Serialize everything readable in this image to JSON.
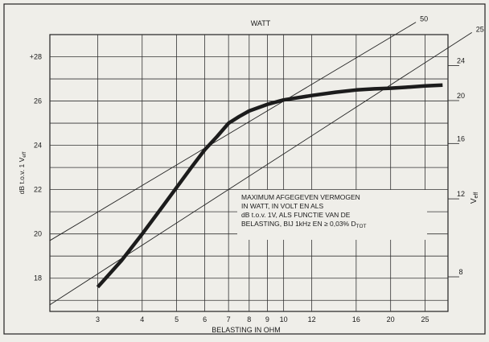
{
  "chart_data": {
    "type": "line",
    "title": "WATT",
    "xlabel": "BELASTING IN OHM",
    "ylabel_left": "dB t.o.v. 1 V",
    "ylabel_left_sub": "eff",
    "ylabel_right": "V",
    "ylabel_right_sub": "eff",
    "x_scale": "log",
    "xlim": [
      2.2,
      29
    ],
    "x_ticks": [
      3,
      4,
      5,
      6,
      7,
      8,
      9,
      10,
      12,
      16,
      20,
      25
    ],
    "x_tick_labels": [
      "3",
      "4",
      "5",
      "6",
      "7",
      "8",
      "9",
      "10",
      "12",
      "16",
      "20",
      "25"
    ],
    "ylim": [
      16.5,
      29
    ],
    "y_ticks_left": [
      18,
      20,
      22,
      24,
      26,
      28
    ],
    "y_tick_labels_left": [
      "18",
      "20",
      "22",
      "24",
      "26",
      "+28"
    ],
    "y_ticks_right_volts": [
      8,
      12,
      16,
      20,
      24
    ],
    "y_tick_labels_right": [
      "8",
      "12",
      "16",
      "20",
      "24"
    ],
    "grid": true,
    "series": [
      {
        "values_x": [
          3,
          3.5,
          4,
          4.5,
          5,
          5.5,
          6,
          6.5,
          7,
          7.5,
          8,
          9,
          10,
          12,
          14,
          16,
          18,
          20,
          22,
          25,
          28
        ],
        "values_y": [
          17.6,
          18.8,
          20.0,
          21.1,
          22.1,
          23.0,
          23.8,
          24.4,
          25.0,
          25.3,
          25.55,
          25.85,
          26.05,
          26.25,
          26.4,
          26.5,
          26.55,
          26.58,
          26.62,
          26.68,
          26.72
        ]
      }
    ],
    "reference_lines": [
      {
        "label": "50",
        "x": [
          2.2,
          20.6
        ],
        "y": [
          19.7,
          29
        ]
      },
      {
        "label": "25",
        "x": [
          2.2,
          29
        ],
        "y": [
          16.8,
          28.4
        ]
      }
    ],
    "annotation": {
      "lines": [
        "MAXIMUM AFGEGEVEN VERMOGEN",
        "IN WATT, IN VOLT EN ALS",
        "dB t.o.v. 1V, ALS FUNCTIE VAN DE",
        "BELASTING, BIJ 1kHz EN ≥ 0,03% D",
        "TOT"
      ]
    }
  }
}
